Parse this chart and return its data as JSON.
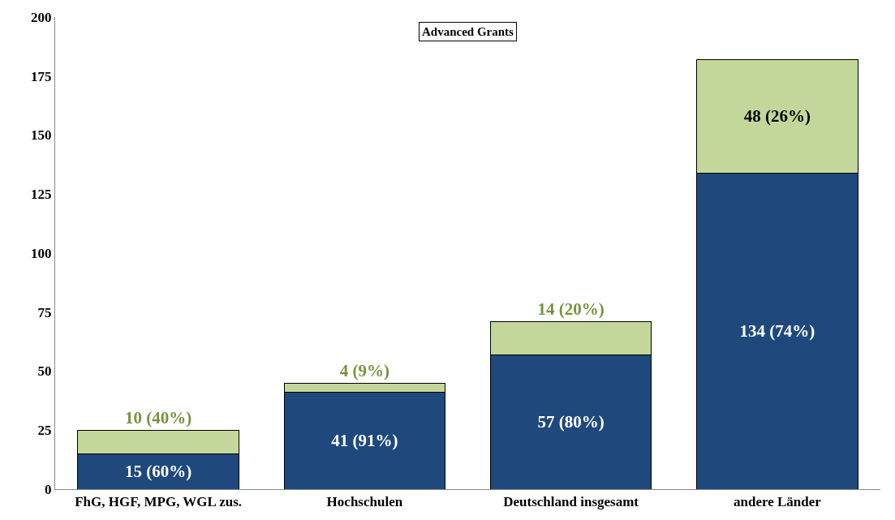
{
  "chart_data": {
    "type": "bar",
    "title": "Advanced Grants",
    "stacked": true,
    "categories": [
      "FhG, HGF, MPG, WGL zus.",
      "Hochschulen",
      "Deutschland insgesamt",
      "andere Länder"
    ],
    "series": [
      {
        "color": "#1f497d",
        "values": [
          15,
          41,
          57,
          134
        ],
        "value_labels": [
          "15 (60%)",
          "41 (91%)",
          "57 (80%)",
          "134 (74%)"
        ]
      },
      {
        "color": "#c4d79b",
        "values": [
          10,
          4,
          14,
          48
        ],
        "value_labels": [
          "10 (40%)",
          "4 (9%)",
          "14 (20%)",
          "48 (26%)"
        ]
      }
    ],
    "ylim": [
      0,
      200
    ],
    "yticks": [
      0,
      25,
      50,
      75,
      100,
      125,
      150,
      175,
      200
    ]
  }
}
